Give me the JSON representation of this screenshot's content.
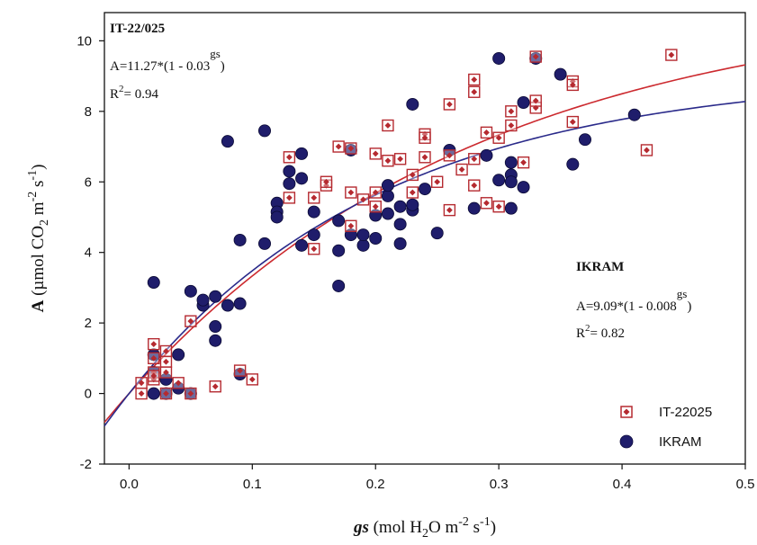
{
  "chart_data": {
    "type": "scatter",
    "title": "",
    "xlabel": {
      "italic": "gs",
      "rest": " (mol H",
      "sub": "2",
      "mid": "O m",
      "sup1": "-2",
      "mid2": " s",
      "sup2": "-1",
      "end": ")"
    },
    "ylabel": {
      "bold": "A",
      "rest": " (µmol CO",
      "sub": "2",
      "mid": " m",
      "sup1": "-2",
      "mid2": " s",
      "sup2": "-1",
      "end": ")"
    },
    "xlim": [
      -0.02,
      0.5
    ],
    "ylim": [
      -2,
      10.8
    ],
    "x_ticks": [
      0.0,
      0.1,
      0.2,
      0.3,
      0.4,
      0.5
    ],
    "x_tick_labels": [
      "0.0",
      "0.1",
      "0.2",
      "0.3",
      "0.4",
      "0.5"
    ],
    "y_ticks": [
      -2,
      0,
      2,
      4,
      6,
      8,
      10
    ],
    "y_tick_labels": [
      "-2",
      "0",
      "2",
      "4",
      "6",
      "8",
      "10"
    ],
    "grid": false,
    "legend_position": "bottom-right",
    "series": [
      {
        "name": "IT-22025",
        "marker": "boxed-dot",
        "color": "#b52a30",
        "points": [
          [
            0.01,
            0.0
          ],
          [
            0.01,
            0.3
          ],
          [
            0.02,
            0.4
          ],
          [
            0.02,
            0.6
          ],
          [
            0.02,
            1.0
          ],
          [
            0.02,
            1.4
          ],
          [
            0.02,
            0.5
          ],
          [
            0.03,
            1.2
          ],
          [
            0.03,
            0.9
          ],
          [
            0.03,
            0.6
          ],
          [
            0.03,
            0.0
          ],
          [
            0.04,
            0.3
          ],
          [
            0.05,
            2.05
          ],
          [
            0.05,
            0.0
          ],
          [
            0.07,
            0.2
          ],
          [
            0.09,
            0.65
          ],
          [
            0.1,
            0.4
          ],
          [
            0.13,
            5.55
          ],
          [
            0.13,
            6.7
          ],
          [
            0.15,
            5.55
          ],
          [
            0.15,
            4.1
          ],
          [
            0.16,
            5.9
          ],
          [
            0.16,
            6.0
          ],
          [
            0.17,
            7.0
          ],
          [
            0.18,
            5.7
          ],
          [
            0.18,
            4.75
          ],
          [
            0.18,
            6.95
          ],
          [
            0.19,
            5.5
          ],
          [
            0.2,
            5.7
          ],
          [
            0.2,
            5.3
          ],
          [
            0.2,
            6.8
          ],
          [
            0.21,
            7.6
          ],
          [
            0.21,
            6.6
          ],
          [
            0.22,
            6.65
          ],
          [
            0.23,
            5.7
          ],
          [
            0.23,
            6.2
          ],
          [
            0.24,
            6.7
          ],
          [
            0.24,
            7.35
          ],
          [
            0.24,
            7.25
          ],
          [
            0.25,
            6.0
          ],
          [
            0.26,
            5.2
          ],
          [
            0.26,
            6.75
          ],
          [
            0.26,
            8.2
          ],
          [
            0.27,
            6.35
          ],
          [
            0.28,
            8.9
          ],
          [
            0.28,
            8.55
          ],
          [
            0.28,
            6.65
          ],
          [
            0.28,
            5.9
          ],
          [
            0.29,
            7.4
          ],
          [
            0.29,
            5.4
          ],
          [
            0.3,
            5.3
          ],
          [
            0.3,
            7.25
          ],
          [
            0.31,
            7.6
          ],
          [
            0.31,
            8.0
          ],
          [
            0.32,
            6.55
          ],
          [
            0.33,
            8.1
          ],
          [
            0.33,
            8.3
          ],
          [
            0.33,
            9.55
          ],
          [
            0.36,
            8.85
          ],
          [
            0.36,
            8.75
          ],
          [
            0.36,
            7.7
          ],
          [
            0.42,
            6.9
          ],
          [
            0.44,
            9.6
          ]
        ]
      },
      {
        "name": "IKRAM",
        "marker": "circle",
        "color": "#1f1d6b",
        "points": [
          [
            0.02,
            3.15
          ],
          [
            0.02,
            1.1
          ],
          [
            0.02,
            0.6
          ],
          [
            0.02,
            0.0
          ],
          [
            0.03,
            0.4
          ],
          [
            0.03,
            0.0
          ],
          [
            0.04,
            0.15
          ],
          [
            0.04,
            1.1
          ],
          [
            0.05,
            2.9
          ],
          [
            0.05,
            0.0
          ],
          [
            0.06,
            2.5
          ],
          [
            0.06,
            2.65
          ],
          [
            0.07,
            2.75
          ],
          [
            0.07,
            1.9
          ],
          [
            0.07,
            1.5
          ],
          [
            0.08,
            7.15
          ],
          [
            0.08,
            2.5
          ],
          [
            0.09,
            4.35
          ],
          [
            0.09,
            2.55
          ],
          [
            0.09,
            0.55
          ],
          [
            0.11,
            7.45
          ],
          [
            0.11,
            4.25
          ],
          [
            0.12,
            5.4
          ],
          [
            0.12,
            5.15
          ],
          [
            0.12,
            5.0
          ],
          [
            0.13,
            6.3
          ],
          [
            0.13,
            5.95
          ],
          [
            0.14,
            6.8
          ],
          [
            0.14,
            6.1
          ],
          [
            0.14,
            4.2
          ],
          [
            0.15,
            4.5
          ],
          [
            0.15,
            5.15
          ],
          [
            0.17,
            4.9
          ],
          [
            0.17,
            4.05
          ],
          [
            0.17,
            3.05
          ],
          [
            0.18,
            6.9
          ],
          [
            0.18,
            4.5
          ],
          [
            0.19,
            4.2
          ],
          [
            0.19,
            4.5
          ],
          [
            0.2,
            4.4
          ],
          [
            0.2,
            5.05
          ],
          [
            0.21,
            5.1
          ],
          [
            0.21,
            5.6
          ],
          [
            0.21,
            5.9
          ],
          [
            0.22,
            5.3
          ],
          [
            0.22,
            4.8
          ],
          [
            0.22,
            4.25
          ],
          [
            0.23,
            5.2
          ],
          [
            0.23,
            5.35
          ],
          [
            0.23,
            8.2
          ],
          [
            0.24,
            5.8
          ],
          [
            0.25,
            4.55
          ],
          [
            0.26,
            6.9
          ],
          [
            0.28,
            5.25
          ],
          [
            0.29,
            6.75
          ],
          [
            0.3,
            9.5
          ],
          [
            0.3,
            6.05
          ],
          [
            0.31,
            6.55
          ],
          [
            0.31,
            6.2
          ],
          [
            0.31,
            6.0
          ],
          [
            0.31,
            5.25
          ],
          [
            0.32,
            5.85
          ],
          [
            0.32,
            8.25
          ],
          [
            0.33,
            9.5
          ],
          [
            0.35,
            9.05
          ],
          [
            0.36,
            6.5
          ],
          [
            0.37,
            7.2
          ],
          [
            0.41,
            7.9
          ]
        ]
      }
    ],
    "curves": [
      {
        "series": "IT-22025",
        "color": "#cc2a2f",
        "a": 11.27,
        "b": 0.03
      },
      {
        "series": "IKRAM",
        "color": "#2a2a8a",
        "a": 9.09,
        "b": 0.008
      }
    ],
    "annotations": [
      {
        "label": "IT-22/025",
        "equation_base": "A=11.27*(1 - 0.03",
        "equation_exp": "gs",
        "equation_close": ")",
        "r2_base": "R",
        "r2_exp": "2",
        "r2_value": "= 0.94",
        "position": "top-left"
      },
      {
        "label": "IKRAM",
        "equation_base": "A=9.09*(1 - 0.008",
        "equation_exp": "gs",
        "equation_close": ")",
        "r2_base": "R",
        "r2_exp": "2",
        "r2_value": "= 0.82",
        "position": "right"
      }
    ]
  }
}
